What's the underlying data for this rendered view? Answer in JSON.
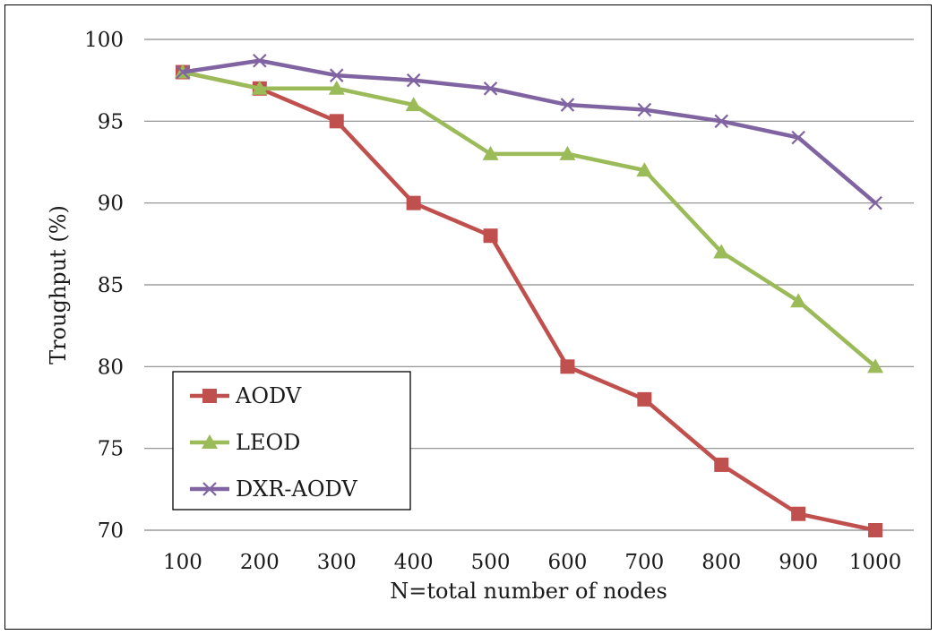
{
  "chart_data": {
    "type": "line",
    "title": "",
    "xlabel": "N=total number of nodes",
    "ylabel": "Troughput (%)",
    "categories": [
      "100",
      "200",
      "300",
      "400",
      "500",
      "600",
      "700",
      "800",
      "900",
      "1000"
    ],
    "ylim": [
      70,
      100
    ],
    "yticks": [
      70,
      75,
      80,
      85,
      90,
      95,
      100
    ],
    "grid": true,
    "legend_position": "bottom-left",
    "series": [
      {
        "name": "AODV",
        "color": "#c0504d",
        "marker": "square",
        "values": [
          98,
          97,
          95,
          90,
          88,
          80,
          78,
          74,
          71,
          70
        ]
      },
      {
        "name": "LEOD",
        "color": "#9bbb59",
        "marker": "triangle",
        "values": [
          98,
          97,
          97,
          96,
          93,
          93,
          92,
          87,
          84,
          80
        ]
      },
      {
        "name": "DXR-AODV",
        "color": "#8064a2",
        "marker": "x",
        "values": [
          98,
          98.7,
          97.8,
          97.5,
          97,
          96,
          95.7,
          95,
          94,
          90
        ]
      }
    ]
  }
}
